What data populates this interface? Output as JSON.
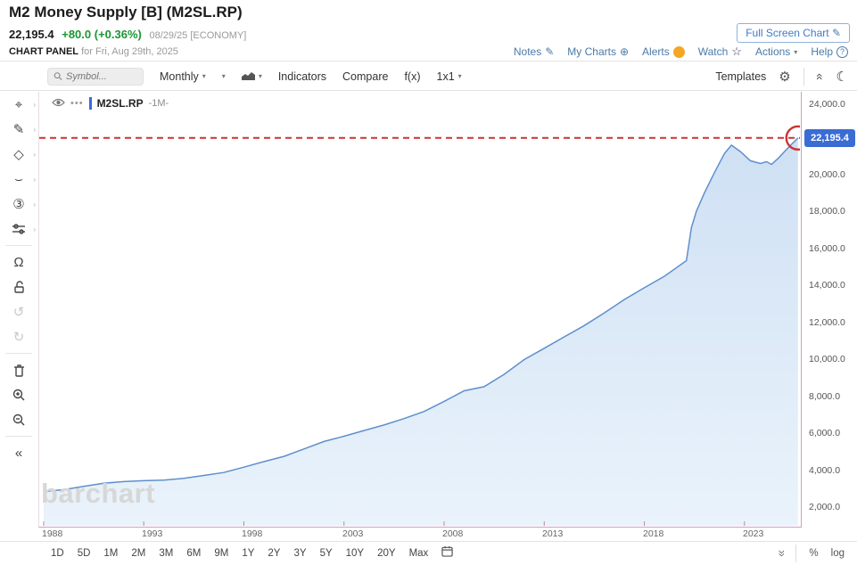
{
  "header": {
    "title": "M2 Money Supply [B] (M2SL.RP)",
    "last_price": "22,195.4",
    "change": "+80.0 (+0.36%)",
    "date_note": "08/29/25 [ECONOMY]",
    "panel_label": "CHART PANEL",
    "panel_date": "for Fri, Aug 29th, 2025",
    "fullscreen_label": "Full Screen Chart",
    "links": [
      "Notes",
      "My Charts",
      "Alerts",
      "Watch",
      "Actions",
      "Help"
    ]
  },
  "toolbar": {
    "symbol_placeholder": "Symbol...",
    "period_label": "Monthly",
    "indicators_label": "Indicators",
    "compare_label": "Compare",
    "fx_label": "f(x)",
    "grid_label": "1x1",
    "templates_label": "Templates"
  },
  "legend": {
    "symbol": "M2SL.RP",
    "interval": "-1M-"
  },
  "watermark": "barchart",
  "price_badge": "22,195.4",
  "y_axis": [
    "24,000.0",
    "20,000.0",
    "18,000.0",
    "16,000.0",
    "14,000.0",
    "12,000.0",
    "10,000.0",
    "8,000.0",
    "6,000.0",
    "4,000.0",
    "2,000.0"
  ],
  "x_axis": [
    "1988",
    "1993",
    "1998",
    "2003",
    "2008",
    "2013",
    "2018",
    "2023"
  ],
  "ranges": [
    "1D",
    "5D",
    "1M",
    "2M",
    "3M",
    "6M",
    "9M",
    "1Y",
    "2Y",
    "3Y",
    "5Y",
    "10Y",
    "20Y",
    "Max"
  ],
  "bottom_right": {
    "percent": "%",
    "log": "log"
  },
  "colors": {
    "line": "#5f8fcc",
    "fill_top": "#cfe0f4",
    "fill_bottom": "#eaf3fb",
    "annotation": "#cc3333",
    "frame": "#c9a2c0",
    "badge": "#3a6cd4",
    "up_green": "#1a9632"
  },
  "chart_data": {
    "type": "area",
    "title": "M2 Money Supply [B] (M2SL.RP)",
    "series_name": "M2SL.RP -1M-",
    "x_range": [
      1987.78,
      2025.77
    ],
    "y_range": [
      1030,
      24715
    ],
    "x_ticks": [
      1988,
      1993,
      1998,
      2003,
      2008,
      2013,
      2018,
      2023
    ],
    "y_ticks": [
      2000,
      4000,
      6000,
      8000,
      10000,
      12000,
      14000,
      16000,
      18000,
      20000,
      24000
    ],
    "last_price": 22195.4,
    "annotation": {
      "type": "horizontal-dashed-line-with-circle",
      "level": 22195.4
    },
    "points": [
      [
        1988.0,
        2900
      ],
      [
        1989.0,
        3000
      ],
      [
        1990.0,
        3180
      ],
      [
        1991.0,
        3350
      ],
      [
        1992.0,
        3440
      ],
      [
        1993.0,
        3490
      ],
      [
        1994.0,
        3520
      ],
      [
        1995.0,
        3620
      ],
      [
        1996.0,
        3780
      ],
      [
        1997.0,
        3940
      ],
      [
        1998.0,
        4230
      ],
      [
        1999.0,
        4530
      ],
      [
        2000.0,
        4820
      ],
      [
        2001.0,
        5220
      ],
      [
        2002.0,
        5630
      ],
      [
        2003.0,
        5920
      ],
      [
        2004.0,
        6230
      ],
      [
        2005.0,
        6530
      ],
      [
        2006.0,
        6880
      ],
      [
        2007.0,
        7270
      ],
      [
        2008.0,
        7820
      ],
      [
        2009.0,
        8400
      ],
      [
        2010.0,
        8620
      ],
      [
        2011.0,
        9300
      ],
      [
        2012.0,
        10100
      ],
      [
        2013.0,
        10720
      ],
      [
        2014.0,
        11340
      ],
      [
        2015.0,
        11960
      ],
      [
        2016.0,
        12650
      ],
      [
        2017.0,
        13380
      ],
      [
        2018.0,
        14020
      ],
      [
        2019.0,
        14650
      ],
      [
        2020.1,
        15500
      ],
      [
        2020.35,
        17300
      ],
      [
        2020.6,
        18200
      ],
      [
        2021.0,
        19200
      ],
      [
        2021.5,
        20300
      ],
      [
        2022.0,
        21350
      ],
      [
        2022.35,
        21800
      ],
      [
        2022.8,
        21450
      ],
      [
        2023.3,
        20950
      ],
      [
        2023.8,
        20800
      ],
      [
        2024.1,
        20900
      ],
      [
        2024.35,
        20750
      ],
      [
        2024.7,
        21100
      ],
      [
        2025.0,
        21450
      ],
      [
        2025.35,
        21850
      ],
      [
        2025.67,
        22195.4
      ]
    ]
  }
}
